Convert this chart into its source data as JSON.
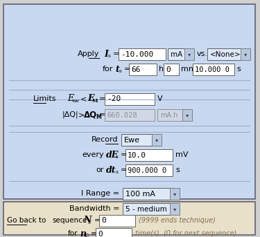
{
  "bg_main": "#c8d8f0",
  "bg_bottom": "#e8e0c8",
  "bg_white": "#ffffff",
  "bg_disabled": "#d0d8e8",
  "border_color": "#808080",
  "text_color": "#000000",
  "row1_val": "-10.000",
  "row1_unit": "mA",
  "row1_none": "<None>",
  "row2_h_val": "66",
  "row2_mn_val": "0",
  "row2_s_val": "10.000 0",
  "row3_val": "-20",
  "row3_unit": "V",
  "row4_val": "660.028",
  "row4_unit": "mA.h",
  "row5_val": "Ewe",
  "row6_val": "10.0",
  "row6_unit": "mV",
  "row7_val": "900.000 0",
  "row7_unit": "s",
  "row8_val": "100 mA",
  "row9_val": "5 - medium",
  "bot1_val": "0",
  "bot1_hint": "(9999 ends technique)",
  "bot2_val": "0",
  "bot2_hint": "time(s)  (0 for next sequence)"
}
